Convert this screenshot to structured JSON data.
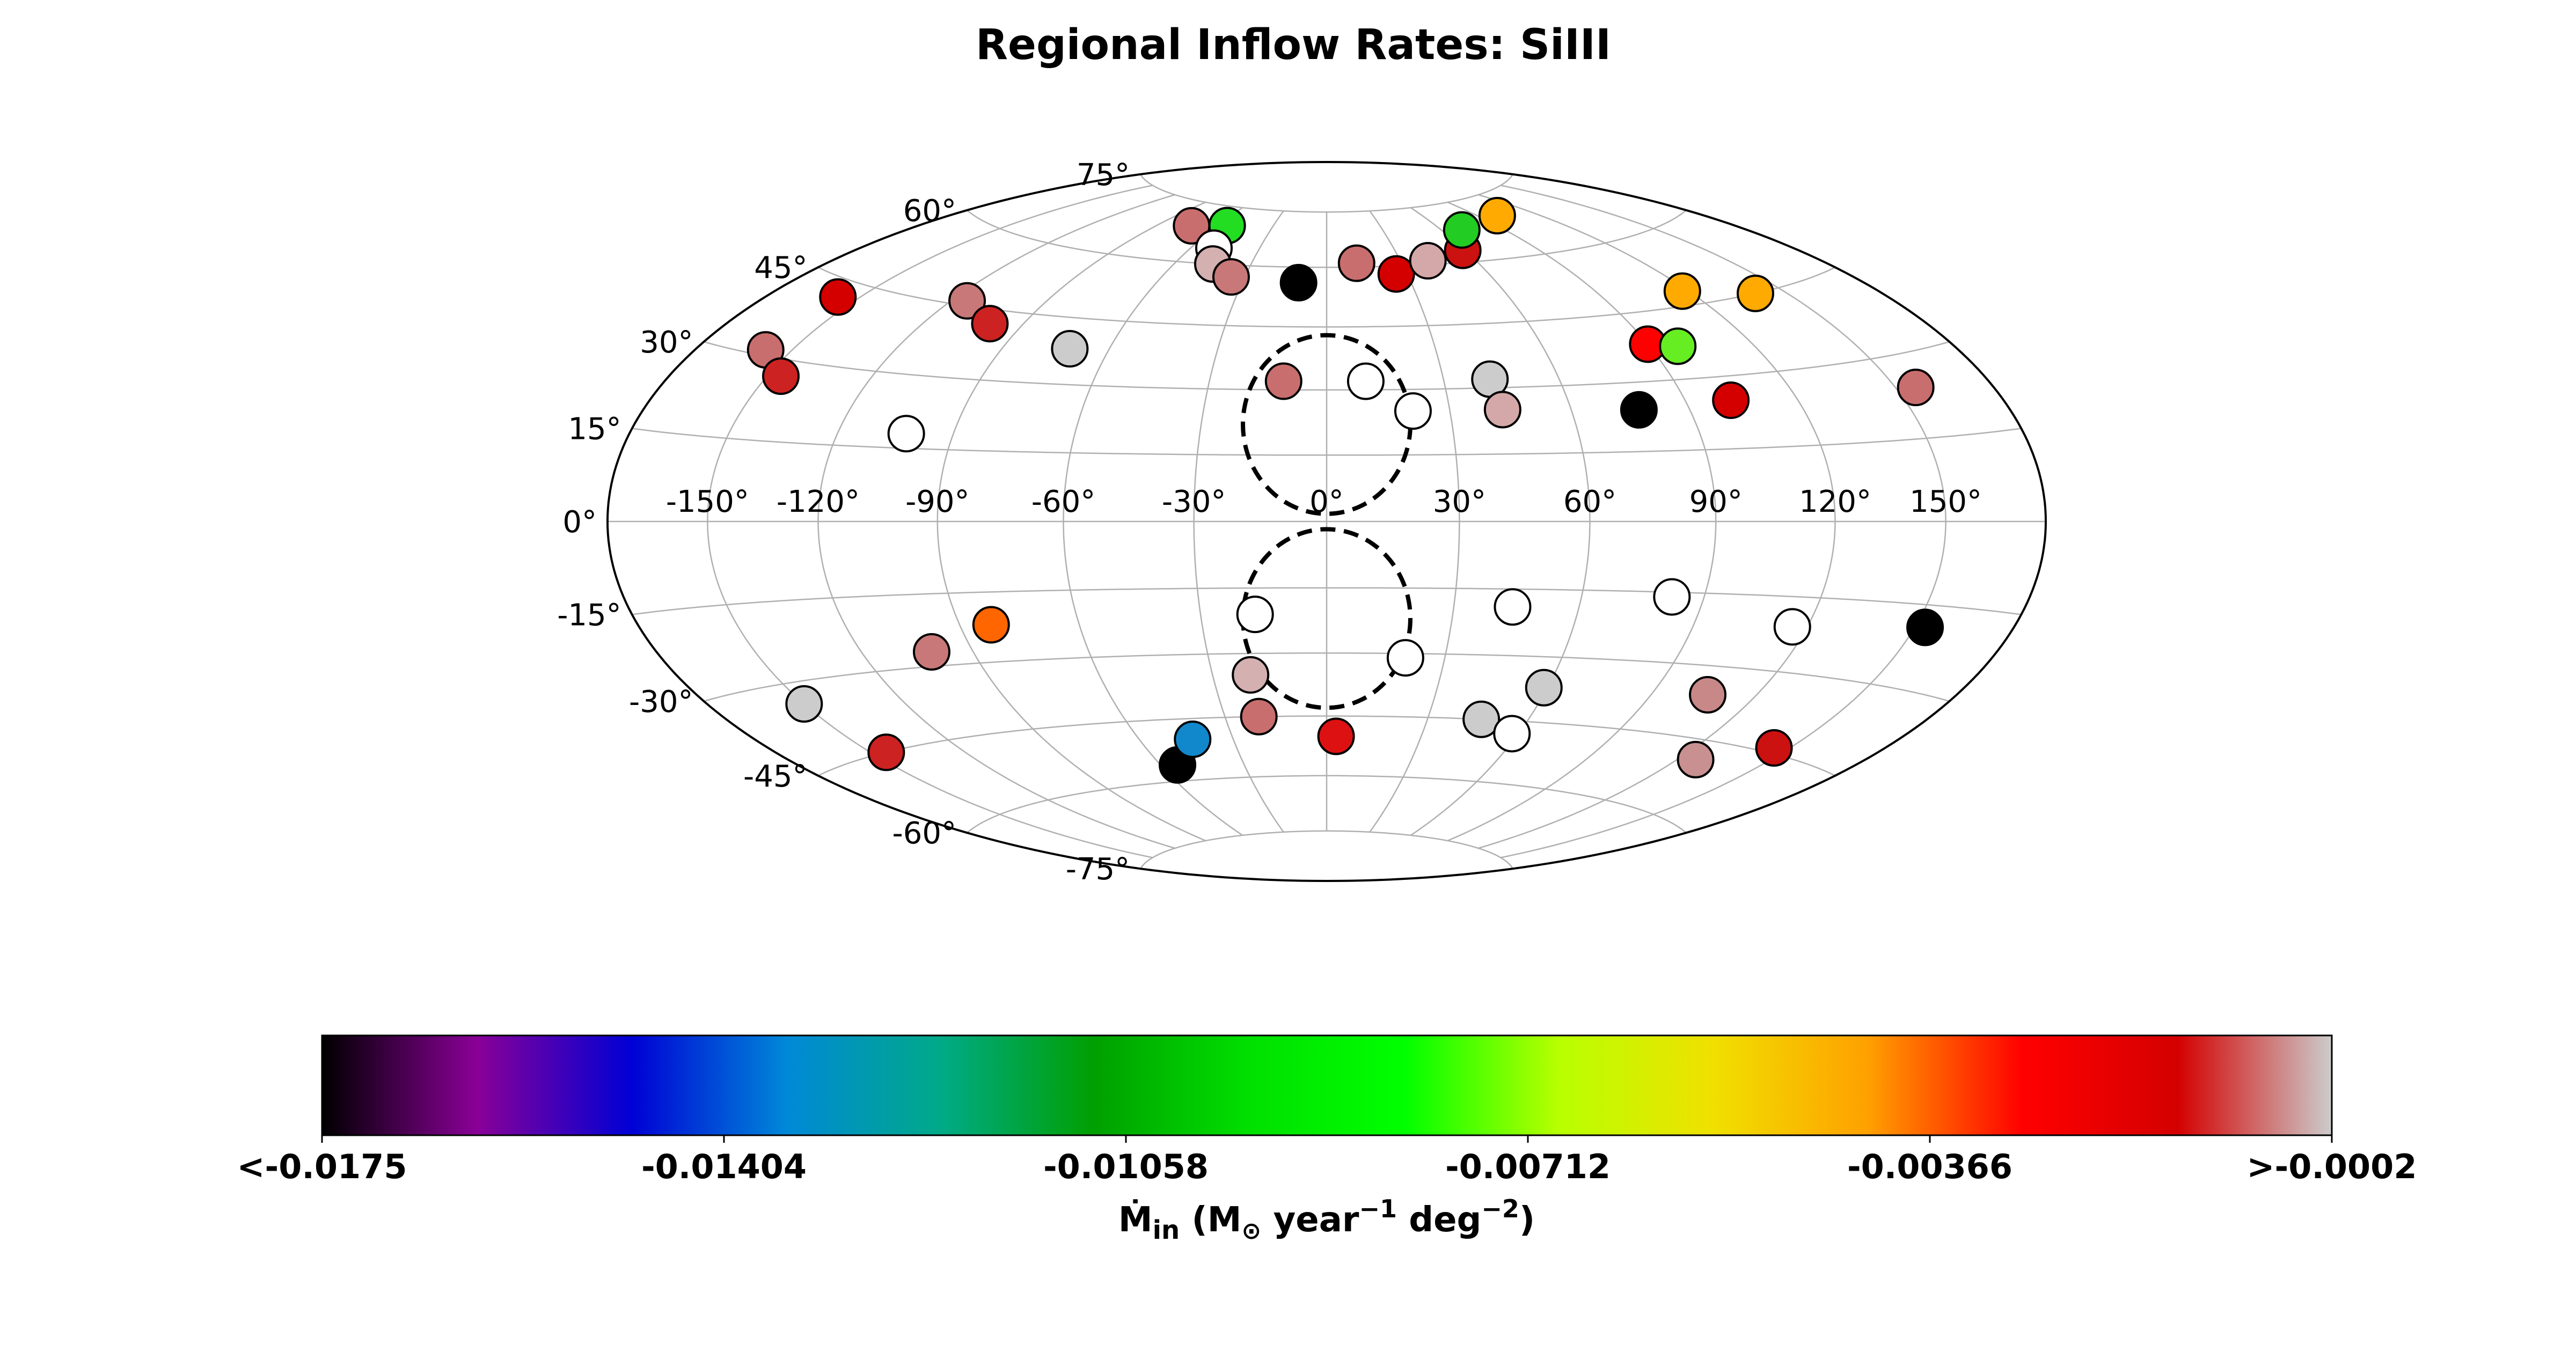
{
  "chart_data": {
    "type": "scatter",
    "projection": "hammer-aitoff",
    "title": "Regional Inflow Rates: SiIII",
    "xticks": [
      "-150°",
      "-120°",
      "-90°",
      "-60°",
      "-30°",
      "0°",
      "30°",
      "60°",
      "90°",
      "120°",
      "150°"
    ],
    "yticks": [
      "75°",
      "60°",
      "45°",
      "30°",
      "15°",
      "0°",
      "-15°",
      "-30°",
      "-45°",
      "-60°",
      "-75°"
    ],
    "grid": true,
    "colorbar": {
      "label_main": "Ṁ",
      "label_sub": "in",
      "label_rest": " (M",
      "label_sun": "⊙",
      "label_units": " year",
      "label_exp1": "−1",
      "label_deg": " deg",
      "label_exp2": "−2",
      "label_close": ")",
      "ticks": [
        "<-0.0175",
        "-0.01404",
        "-0.01058",
        "-0.00712",
        "-0.00366",
        ">-0.0002"
      ],
      "range": [
        -0.0175,
        -0.0002
      ],
      "colormap": "nipy_spectral",
      "stops": [
        "#000000",
        "#8a0097",
        "#0000d5",
        "#0088d8",
        "#00aa88",
        "#00a000",
        "#00e000",
        "#00ff00",
        "#b8ff00",
        "#f0e000",
        "#ffa000",
        "#ff0000",
        "#d40000",
        "#cccccc"
      ]
    },
    "bubble_regions": [
      {
        "name": "north",
        "center_lon": 0,
        "center_lat": 22
      },
      {
        "name": "south",
        "center_lon": 0,
        "center_lat": -22
      }
    ],
    "points": [
      {
        "lon": -73,
        "lat": 69,
        "color": "#c96e6e"
      },
      {
        "lon": -55,
        "lat": 70,
        "color": "#22dd22"
      },
      {
        "lon": -50,
        "lat": 64,
        "color": "#ffffff"
      },
      {
        "lon": -45,
        "lat": 60,
        "color": "#d4b0b0"
      },
      {
        "lon": -35,
        "lat": 57,
        "color": "#c87878"
      },
      {
        "lon": -10,
        "lat": 56,
        "color": "#000000"
      },
      {
        "lon": 12,
        "lat": 61,
        "color": "#c96e6e"
      },
      {
        "lon": 26,
        "lat": 58,
        "color": "#d40000"
      },
      {
        "lon": 41,
        "lat": 61,
        "color": "#d4a8a8"
      },
      {
        "lon": 59,
        "lat": 63,
        "color": "#cc1111"
      },
      {
        "lon": 70,
        "lat": 68,
        "color": "#22cc22"
      },
      {
        "lon": 100,
        "lat": 70,
        "color": "#ffaa00"
      },
      {
        "lon": -157,
        "lat": 42,
        "color": "#d40000"
      },
      {
        "lon": -115,
        "lat": 46,
        "color": "#c87878"
      },
      {
        "lon": -100,
        "lat": 42,
        "color": "#cc2222"
      },
      {
        "lon": -71,
        "lat": 38,
        "color": "#cccccc"
      },
      {
        "lon": 118,
        "lat": 48,
        "color": "#ffaa00"
      },
      {
        "lon": 140,
        "lat": 45,
        "color": "#ffaa00"
      },
      {
        "lon": 90,
        "lat": 38,
        "color": "#ff0000"
      },
      {
        "lon": 98,
        "lat": 37,
        "color": "#66ee22"
      },
      {
        "lon": -158,
        "lat": 31,
        "color": "#c96e6e"
      },
      {
        "lon": -146,
        "lat": 27,
        "color": "#cc2222"
      },
      {
        "lon": -102,
        "lat": 18,
        "color": "#ffffff"
      },
      {
        "lon": -11,
        "lat": 32,
        "color": "#c96e6e"
      },
      {
        "lon": 10,
        "lat": 32,
        "color": "#ffffff"
      },
      {
        "lon": 42,
        "lat": 32,
        "color": "#cccccc"
      },
      {
        "lon": 21,
        "lat": 25,
        "color": "#ffffff"
      },
      {
        "lon": 43,
        "lat": 25,
        "color": "#d4a8a8"
      },
      {
        "lon": 77,
        "lat": 24,
        "color": "#000000"
      },
      {
        "lon": 102,
        "lat": 25,
        "color": "#d40000"
      },
      {
        "lon": 156,
        "lat": 24,
        "color": "#c96e6e"
      },
      {
        "lon": -82,
        "lat": -22,
        "color": "#ff6600"
      },
      {
        "lon": -17,
        "lat": -21,
        "color": "#ffffff"
      },
      {
        "lon": 44,
        "lat": -19,
        "color": "#ffffff"
      },
      {
        "lon": 82,
        "lat": -16,
        "color": "#ffffff"
      },
      {
        "lon": 116,
        "lat": -21,
        "color": "#ffffff"
      },
      {
        "lon": 153,
        "lat": -19,
        "color": "#000000"
      },
      {
        "lon": -101,
        "lat": -27,
        "color": "#c87878"
      },
      {
        "lon": -150,
        "lat": -34,
        "color": "#cccccc"
      },
      {
        "lon": -145,
        "lat": -45,
        "color": "#cc2222"
      },
      {
        "lon": -20,
        "lat": -35,
        "color": "#d4b0b0"
      },
      {
        "lon": 20,
        "lat": -31,
        "color": "#ffffff"
      },
      {
        "lon": 59,
        "lat": -37,
        "color": "#cccccc"
      },
      {
        "lon": 106,
        "lat": -36,
        "color": "#c88888"
      },
      {
        "lon": 145,
        "lat": -44,
        "color": "#cc1111"
      },
      {
        "lon": -54,
        "lat": -56,
        "color": "#000000"
      },
      {
        "lon": -43,
        "lat": -50,
        "color": "#1188cc"
      },
      {
        "lon": -20,
        "lat": -45,
        "color": "#c96e6e"
      },
      {
        "lon": 3,
        "lat": -50,
        "color": "#dd1111"
      },
      {
        "lon": 46,
        "lat": -45,
        "color": "#cccccc"
      },
      {
        "lon": 58,
        "lat": -48,
        "color": "#ffffff"
      },
      {
        "lon": 126,
        "lat": -49,
        "color": "#c89090"
      }
    ]
  }
}
